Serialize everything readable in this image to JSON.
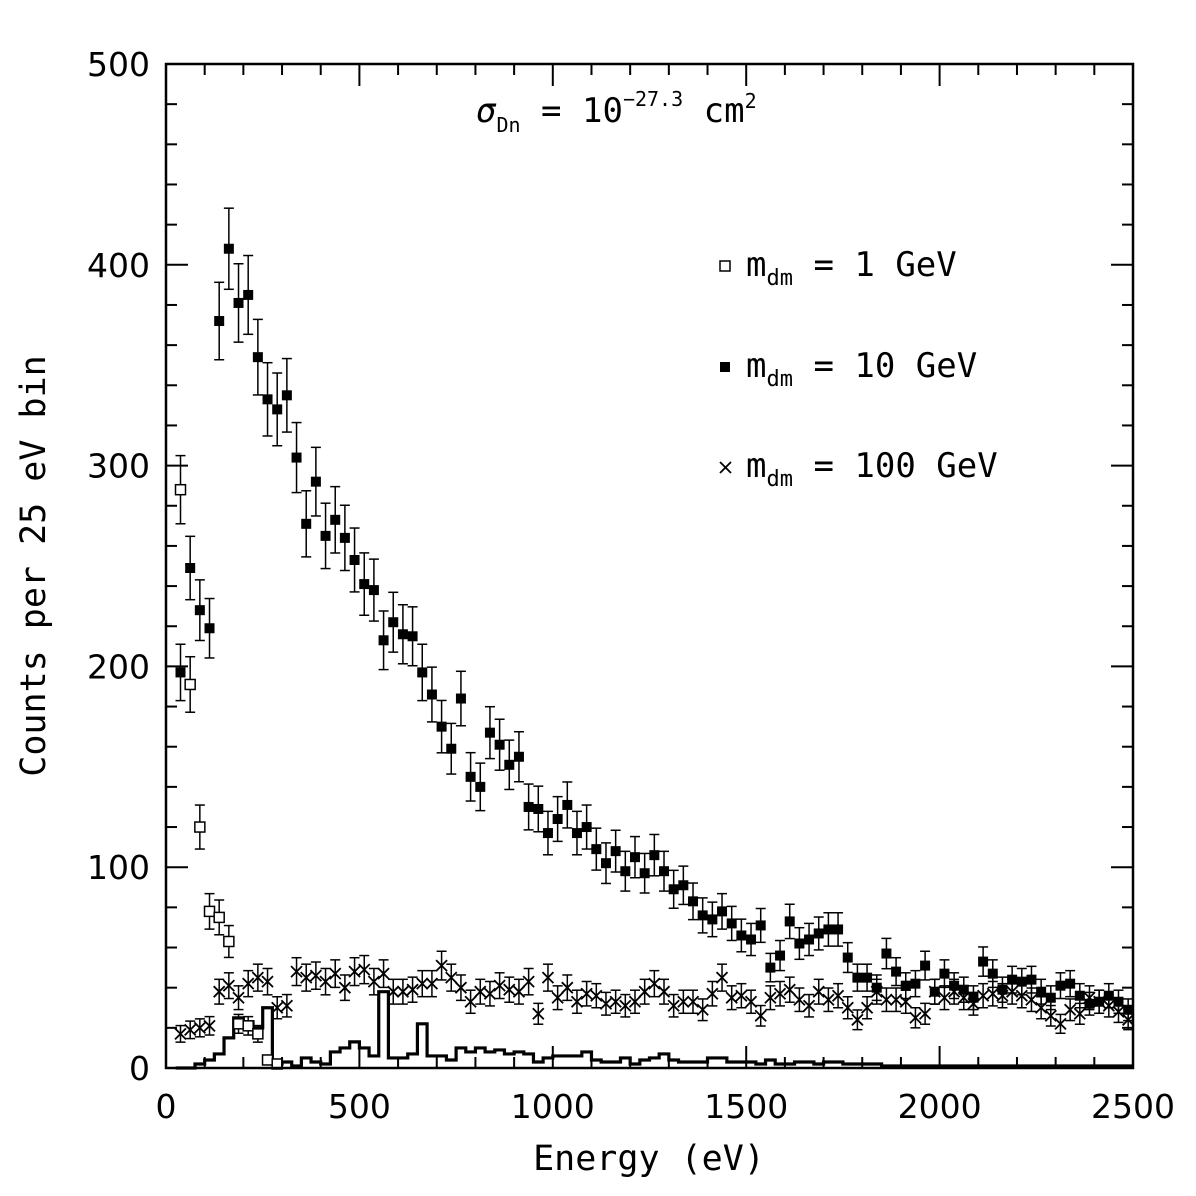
{
  "chart_data": {
    "type": "scatter",
    "xlabel": "Energy (eV)",
    "ylabel": "Counts per 25 eV bin",
    "xlim": [
      0,
      2500
    ],
    "ylim": [
      0,
      500
    ],
    "xticks": [
      0,
      500,
      1000,
      1500,
      2000,
      2500
    ],
    "yticks": [
      0,
      100,
      200,
      300,
      400,
      500
    ],
    "x_tick_labels": [
      "0",
      "500",
      "1000",
      "1500",
      "2000",
      "2500"
    ],
    "y_tick_labels": [
      "0",
      "100",
      "200",
      "300",
      "400",
      "500"
    ],
    "annotation": {
      "symbol": "σ",
      "sub": "Dn",
      "eq": " = 10",
      "sup": "−27.3",
      "unit": " cm",
      "unit_sup": "2"
    },
    "legend_position": "right",
    "series": [
      {
        "legend_label": "m",
        "legend_sub": "dm",
        "legend_value": " = 1 GeV",
        "marker": "open-square",
        "x": [
          37.5,
          62.5,
          87.5,
          112.5,
          137.5,
          162.5,
          187.5,
          212.5,
          237.5,
          262.5,
          287.5
        ],
        "y": [
          288,
          191,
          120,
          78,
          75,
          63,
          22,
          21,
          17,
          4,
          2
        ]
      },
      {
        "legend_label": "m",
        "legend_sub": "dm",
        "legend_value": " = 10 GeV",
        "marker": "filled-square",
        "x": [
          37.5,
          62.5,
          87.5,
          112.5,
          137.5,
          162.5,
          187.5,
          212.5,
          237.5,
          262.5,
          287.5,
          312.5,
          337.5,
          362.5,
          387.5,
          412.5,
          437.5,
          462.5,
          487.5,
          512.5,
          537.5,
          562.5,
          587.5,
          612.5,
          637.5,
          662.5,
          687.5,
          712.5,
          737.5,
          762.5,
          787.5,
          812.5,
          837.5,
          862.5,
          887.5,
          912.5,
          937.5,
          962.5,
          987.5,
          1012.5,
          1037.5,
          1062.5,
          1087.5,
          1112.5,
          1137.5,
          1162.5,
          1187.5,
          1212.5,
          1237.5,
          1262.5,
          1287.5,
          1312.5,
          1337.5,
          1362.5,
          1387.5,
          1412.5,
          1437.5,
          1462.5,
          1487.5,
          1512.5,
          1537.5,
          1562.5,
          1587.5,
          1612.5,
          1637.5,
          1662.5,
          1687.5,
          1712.5,
          1737.5,
          1762.5,
          1787.5,
          1812.5,
          1837.5,
          1862.5,
          1887.5,
          1912.5,
          1937.5,
          1962.5,
          1987.5,
          2012.5,
          2037.5,
          2062.5,
          2087.5,
          2112.5,
          2137.5,
          2162.5,
          2187.5,
          2212.5,
          2237.5,
          2262.5,
          2287.5,
          2312.5,
          2337.5,
          2362.5,
          2387.5,
          2412.5,
          2437.5,
          2462.5,
          2487.5
        ],
        "y": [
          197,
          249,
          228,
          219,
          372,
          408,
          381,
          385,
          354,
          333,
          328,
          335,
          304,
          271,
          292,
          265,
          273,
          264,
          253,
          241,
          238,
          213,
          222,
          216,
          215,
          197,
          186,
          170,
          159,
          184,
          145,
          140,
          167,
          161,
          151,
          155,
          130,
          129,
          117,
          124,
          131,
          117,
          120,
          109,
          102,
          108,
          98,
          105,
          97,
          106,
          98,
          89,
          91,
          83,
          76,
          74,
          78,
          72,
          66,
          64,
          71,
          50,
          56,
          73,
          62,
          64,
          67,
          69,
          69,
          55,
          45,
          45,
          40,
          57,
          48,
          41,
          42,
          51,
          38,
          47,
          41,
          39,
          35,
          53,
          47,
          39,
          44,
          43,
          44,
          38,
          35,
          41,
          42,
          36,
          32,
          33,
          36,
          33,
          29
        ]
      },
      {
        "legend_label": "m",
        "legend_sub": "dm",
        "legend_value": " = 100 GeV",
        "marker": "cross",
        "x": [
          37.5,
          62.5,
          87.5,
          112.5,
          137.5,
          162.5,
          187.5,
          212.5,
          237.5,
          262.5,
          287.5,
          312.5,
          337.5,
          362.5,
          387.5,
          412.5,
          437.5,
          462.5,
          487.5,
          512.5,
          537.5,
          562.5,
          587.5,
          612.5,
          637.5,
          662.5,
          687.5,
          712.5,
          737.5,
          762.5,
          787.5,
          812.5,
          837.5,
          862.5,
          887.5,
          912.5,
          937.5,
          962.5,
          987.5,
          1012.5,
          1037.5,
          1062.5,
          1087.5,
          1112.5,
          1137.5,
          1162.5,
          1187.5,
          1212.5,
          1237.5,
          1262.5,
          1287.5,
          1312.5,
          1337.5,
          1362.5,
          1387.5,
          1412.5,
          1437.5,
          1462.5,
          1487.5,
          1512.5,
          1537.5,
          1562.5,
          1587.5,
          1612.5,
          1637.5,
          1662.5,
          1687.5,
          1712.5,
          1737.5,
          1762.5,
          1787.5,
          1812.5,
          1837.5,
          1862.5,
          1887.5,
          1912.5,
          1937.5,
          1962.5,
          1987.5,
          2012.5,
          2037.5,
          2062.5,
          2087.5,
          2112.5,
          2137.5,
          2162.5,
          2187.5,
          2212.5,
          2237.5,
          2262.5,
          2287.5,
          2312.5,
          2337.5,
          2362.5,
          2387.5,
          2412.5,
          2437.5,
          2462.5,
          2487.5
        ],
        "y": [
          17,
          19,
          20,
          21,
          38,
          41,
          35,
          42,
          45,
          43,
          30,
          31,
          48,
          45,
          46,
          43,
          47,
          40,
          48,
          49,
          43,
          47,
          38,
          38,
          39,
          42,
          42,
          51,
          45,
          40,
          33,
          38,
          37,
          41,
          39,
          38,
          43,
          27,
          45,
          35,
          40,
          33,
          37,
          36,
          32,
          33,
          31,
          33,
          38,
          42,
          38,
          31,
          33,
          33,
          29,
          37,
          45,
          35,
          36,
          33,
          26,
          35,
          37,
          39,
          34,
          31,
          38,
          34,
          36,
          30,
          24,
          30,
          38,
          34,
          34,
          33,
          25,
          27,
          38,
          35,
          38,
          35,
          32,
          36,
          37,
          36,
          38,
          36,
          34,
          30,
          26,
          22,
          29,
          27,
          35,
          33,
          31,
          28,
          24
        ]
      },
      {
        "marker": "histogram-step",
        "bin_edges": [
          25,
          50,
          75,
          100,
          125,
          150,
          175,
          200,
          225,
          250,
          275,
          300,
          325,
          350,
          375,
          400,
          425,
          450,
          475,
          500,
          525,
          550,
          575,
          600,
          625,
          650,
          675,
          700,
          725,
          750,
          775,
          800,
          825,
          850,
          875,
          900,
          925,
          950,
          975,
          1000,
          1025,
          1050,
          1075,
          1100,
          1125,
          1150,
          1175,
          1200,
          1225,
          1250,
          1275,
          1300,
          1325,
          1350,
          1375,
          1400,
          1425,
          1450,
          1475,
          1500,
          1525,
          1550,
          1575,
          1600,
          1625,
          1650,
          1675,
          1700,
          1725,
          1750,
          1775,
          1800,
          1825,
          1850,
          1875,
          1900,
          1925,
          1950,
          1975,
          2000,
          2025,
          2050,
          2075,
          2100,
          2125,
          2150,
          2175,
          2200,
          2225,
          2250,
          2275,
          2300,
          2325,
          2350,
          2375,
          2400,
          2425,
          2450,
          2475,
          2500
        ],
        "counts": [
          0,
          0,
          2,
          4,
          7,
          15,
          25,
          23,
          20,
          30,
          2,
          3,
          1,
          5,
          3,
          2,
          8,
          10,
          13,
          10,
          6,
          38,
          5,
          5,
          7,
          22,
          6,
          6,
          4,
          10,
          8,
          10,
          8,
          9,
          7,
          8,
          7,
          3,
          5,
          6,
          6,
          6,
          8,
          4,
          3,
          3,
          5,
          2,
          4,
          5,
          7,
          4,
          3,
          3,
          3,
          5,
          5,
          3,
          3,
          3,
          2,
          4,
          2,
          2,
          3,
          3,
          2,
          3,
          3,
          2,
          2,
          2,
          2,
          1,
          1,
          1,
          1,
          1,
          1,
          1,
          1,
          1,
          1,
          1,
          1,
          1,
          1,
          1,
          1,
          1,
          1,
          1,
          1,
          1,
          1,
          1,
          1,
          1,
          1
        ]
      }
    ]
  }
}
